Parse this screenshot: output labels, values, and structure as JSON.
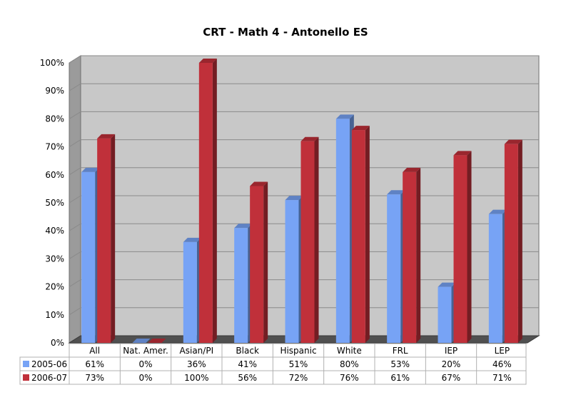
{
  "chart_data": {
    "type": "bar",
    "title": "CRT - Math 4 - Antonello ES",
    "categories": [
      "All",
      "Nat. Amer.",
      "Asian/PI",
      "Black",
      "Hispanic",
      "White",
      "FRL",
      "IEP",
      "LEP"
    ],
    "series": [
      {
        "name": "2005-06",
        "color": "#77A3F5",
        "values": [
          61,
          0,
          36,
          41,
          51,
          80,
          53,
          20,
          46
        ]
      },
      {
        "name": "2006-07",
        "color": "#C0303A",
        "values": [
          73,
          0,
          100,
          56,
          72,
          76,
          61,
          67,
          71
        ]
      }
    ],
    "ylim": [
      0,
      100
    ],
    "yticks": [
      0,
      10,
      20,
      30,
      40,
      50,
      60,
      70,
      80,
      90,
      100
    ],
    "ytick_suffix": "%",
    "data_table": true,
    "grid": true,
    "legend": "data-table-left",
    "xlabel": "",
    "ylabel": ""
  }
}
